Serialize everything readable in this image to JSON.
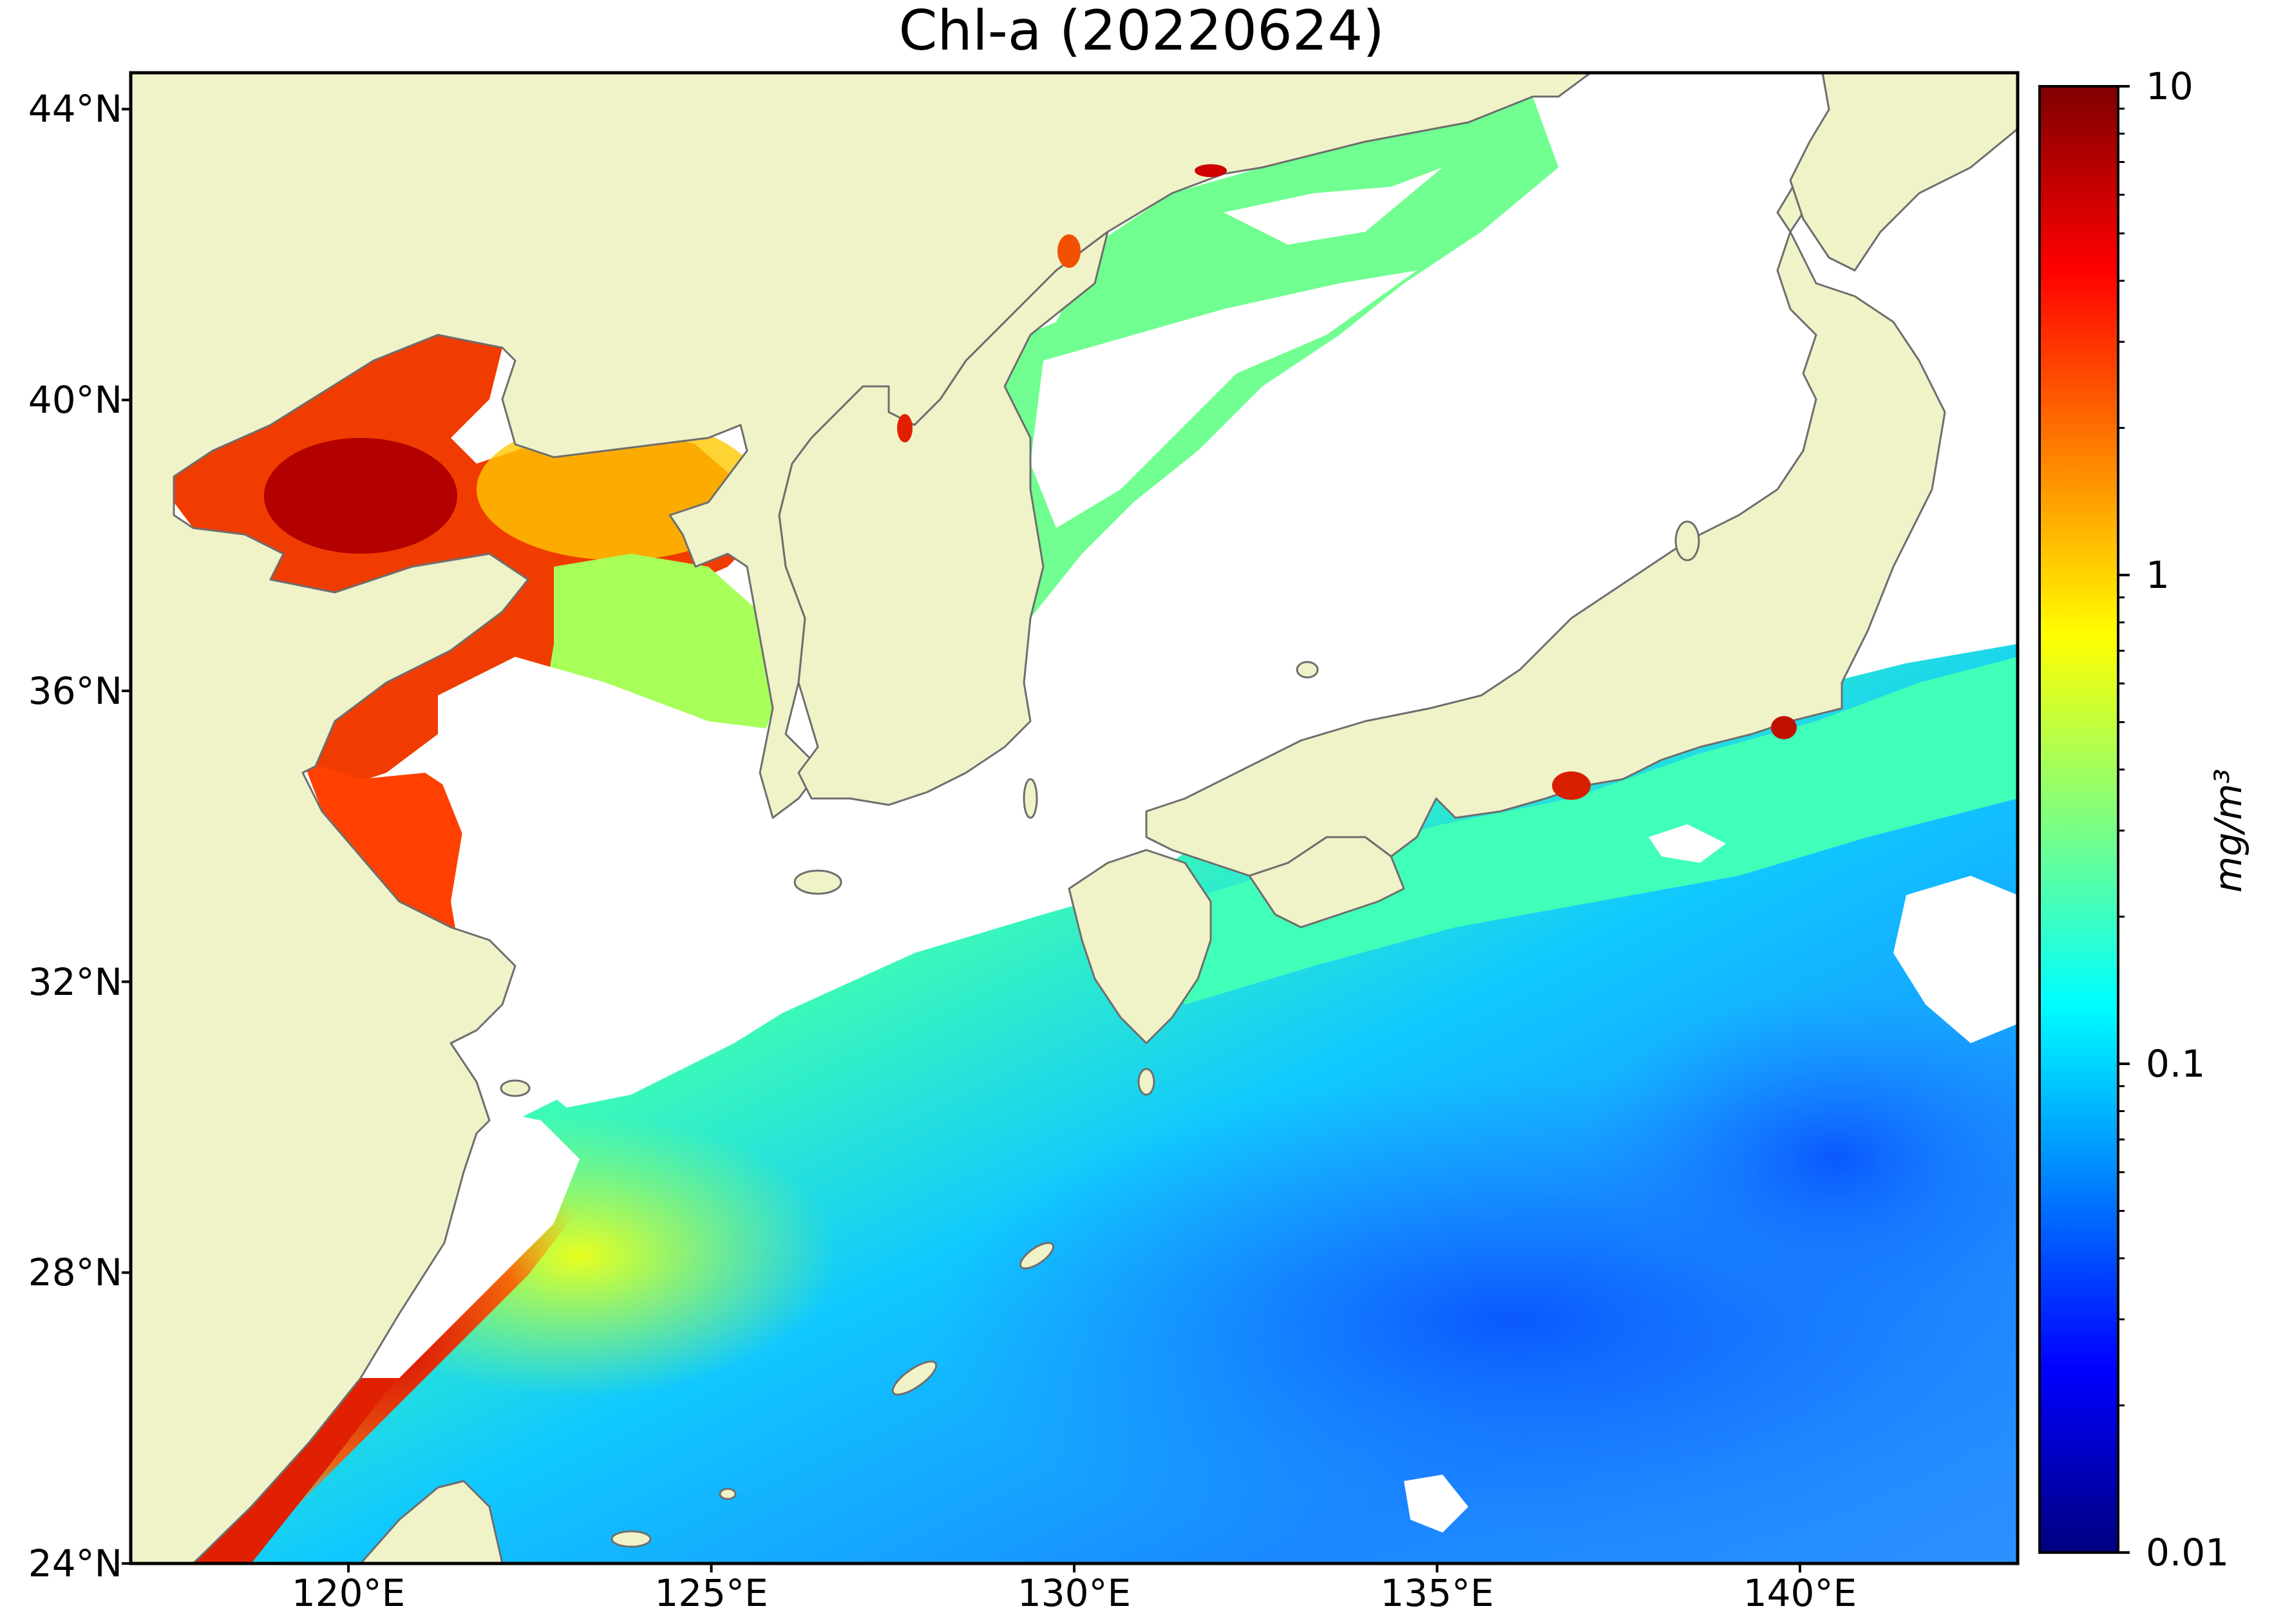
{
  "map": {
    "title": "Chl-a (20220624)",
    "projection": "equirectangular",
    "extent": {
      "lon_min": 117,
      "lon_max": 143,
      "lat_min": 24,
      "lat_max": 44.5
    },
    "lat_ticks": [
      {
        "value": 44,
        "label": "44°N"
      },
      {
        "value": 40,
        "label": "40°N"
      },
      {
        "value": 36,
        "label": "36°N"
      },
      {
        "value": 32,
        "label": "32°N"
      },
      {
        "value": 28,
        "label": "28°N"
      },
      {
        "value": 24,
        "label": "24°N"
      }
    ],
    "lon_ticks": [
      {
        "value": 120,
        "label": "120°E"
      },
      {
        "value": 125,
        "label": "125°E"
      },
      {
        "value": 130,
        "label": "130°E"
      },
      {
        "value": 135,
        "label": "135°E"
      },
      {
        "value": 140,
        "label": "140°E"
      }
    ],
    "colors": {
      "land": "#f0f2c8",
      "coastline": "#6e6e6e",
      "no_data": "#ffffff",
      "frame": "#000000"
    },
    "features": [
      {
        "name": "china-coast"
      },
      {
        "name": "korea-peninsula"
      },
      {
        "name": "japan"
      },
      {
        "name": "taiwan"
      },
      {
        "name": "bohai-sea"
      },
      {
        "name": "yellow-sea"
      },
      {
        "name": "east-china-sea"
      },
      {
        "name": "sea-of-japan"
      },
      {
        "name": "pacific-ocean"
      }
    ]
  },
  "colorbar": {
    "scale": "log",
    "min": 0.01,
    "max": 10,
    "colormap": "jet",
    "unit": "mg/m³",
    "ticks": [
      {
        "value": 10,
        "label": "10"
      },
      {
        "value": 1,
        "label": "1"
      },
      {
        "value": 0.1,
        "label": "0.1"
      },
      {
        "value": 0.01,
        "label": "0.01"
      }
    ],
    "stops": [
      "#00007f",
      "#0000ff",
      "#007fff",
      "#00ffff",
      "#7fff7f",
      "#ffff00",
      "#ff7f00",
      "#ff0000",
      "#7f0000"
    ]
  }
}
